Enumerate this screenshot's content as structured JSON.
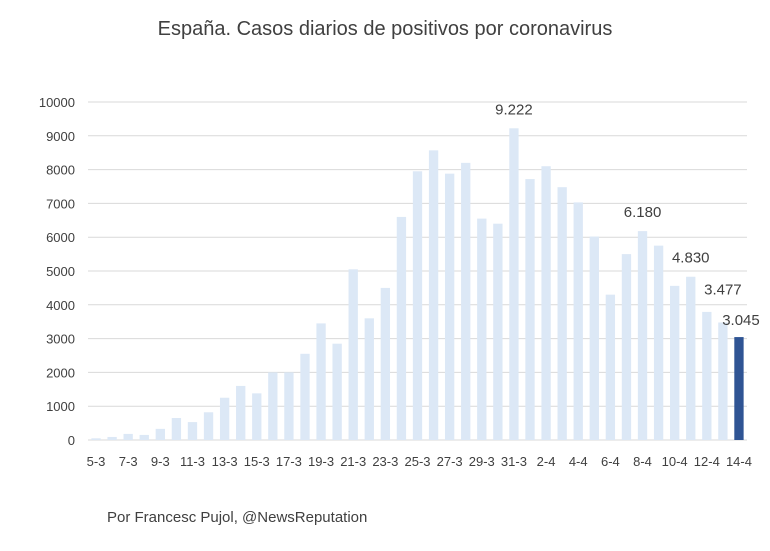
{
  "title": "España. Casos diarios de positivos por coronavirus",
  "credit": "Por Francesc Pujol, @NewsReputation",
  "colors": {
    "bar": "#dce8f6",
    "highlight": "#2f5494",
    "grid": "#d9d9d9",
    "text": "#404040"
  },
  "chart_data": {
    "type": "bar",
    "title": "España. Casos diarios de positivos por coronavirus",
    "xlabel": "",
    "ylabel": "",
    "ylim": [
      0,
      10000
    ],
    "yticks": [
      0,
      1000,
      2000,
      3000,
      4000,
      5000,
      6000,
      7000,
      8000,
      9000,
      10000
    ],
    "grid": true,
    "legend": "none",
    "categories": [
      "5-3",
      "6-3",
      "7-3",
      "8-3",
      "9-3",
      "10-3",
      "11-3",
      "12-3",
      "13-3",
      "14-3",
      "15-3",
      "16-3",
      "17-3",
      "18-3",
      "19-3",
      "20-3",
      "21-3",
      "22-3",
      "23-3",
      "24-3",
      "25-3",
      "26-3",
      "27-3",
      "28-3",
      "29-3",
      "30-3",
      "31-3",
      "1-4",
      "2-4",
      "3-4",
      "4-4",
      "5-4",
      "6-4",
      "7-4",
      "8-4",
      "9-4",
      "10-4",
      "11-4",
      "12-4",
      "13-4",
      "14-4"
    ],
    "tick_labels": [
      "5-3",
      "7-3",
      "9-3",
      "11-3",
      "13-3",
      "15-3",
      "17-3",
      "19-3",
      "21-3",
      "23-3",
      "25-3",
      "27-3",
      "29-3",
      "31-3",
      "2-4",
      "4-4",
      "6-4",
      "8-4",
      "10-4",
      "12-4",
      "14-4"
    ],
    "values": [
      50,
      90,
      180,
      150,
      330,
      650,
      530,
      820,
      1250,
      1600,
      1380,
      2000,
      2000,
      2550,
      3450,
      2850,
      5050,
      3600,
      4500,
      6600,
      7950,
      8570,
      7880,
      8200,
      6550,
      6400,
      9222,
      7720,
      8100,
      7480,
      7030,
      6020,
      4300,
      5500,
      6180,
      5750,
      4560,
      4830,
      3790,
      3477,
      3045
    ],
    "highlight_index": 40,
    "data_labels": [
      {
        "index": 26,
        "text": "9.222"
      },
      {
        "index": 34,
        "text": "6.180"
      },
      {
        "index": 37,
        "text": "4.830"
      },
      {
        "index": 39,
        "text": "3.477"
      },
      {
        "index": 40,
        "text": "3.045"
      }
    ]
  }
}
